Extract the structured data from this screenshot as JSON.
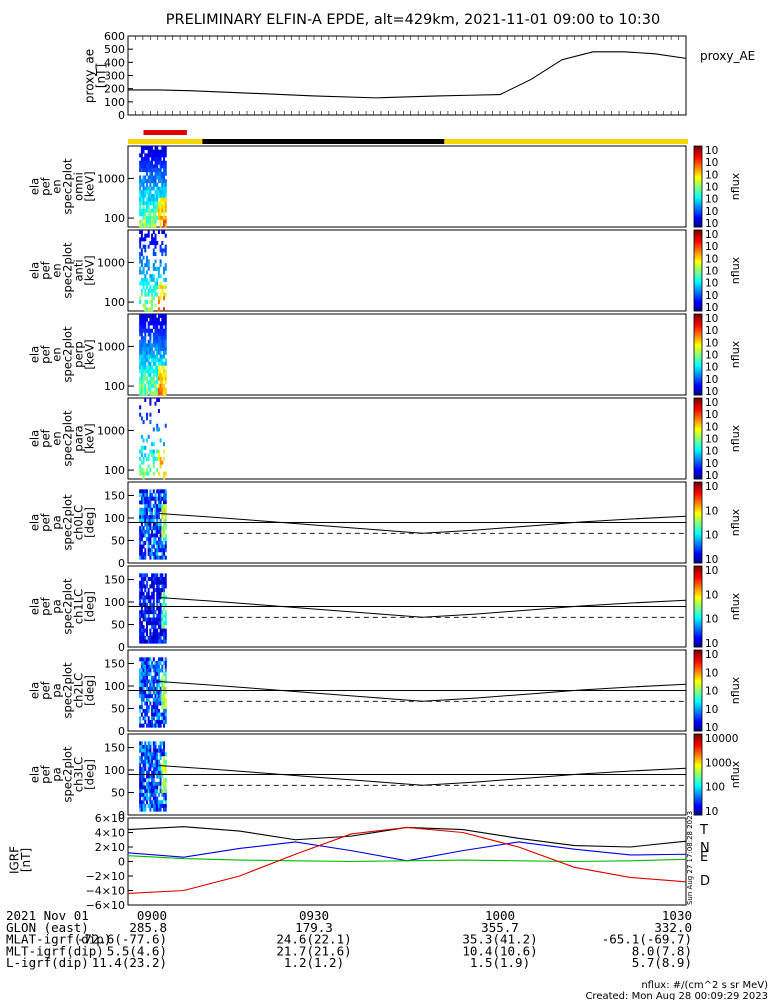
{
  "title": "PRELIMINARY ELFIN-A EPDE, alt=429km, 2021-11-01 09:00 to 10:30",
  "colors": {
    "bar_red": "#e00000",
    "bar_black": "#000000",
    "bar_yellow": "#f5d800",
    "igrf_T": "#000000",
    "igrf_N": "#0000dd",
    "igrf_E": "#00bb00",
    "igrf_D": "#dd0000"
  },
  "chart_data": [
    {
      "type": "line",
      "panel": "proxy_ae",
      "ylabel": [
        "proxy_ae",
        "[nT]"
      ],
      "legend": "proxy_AE",
      "ylim": [
        0,
        600
      ],
      "yticks": [
        "600",
        "500",
        "400",
        "300",
        "200",
        "100",
        "0"
      ],
      "x": [
        0,
        5,
        10,
        20,
        30,
        40,
        50,
        55,
        60,
        65,
        70,
        75,
        80,
        85,
        90
      ],
      "y": [
        190,
        190,
        185,
        165,
        145,
        130,
        145,
        150,
        155,
        270,
        420,
        480,
        480,
        465,
        430
      ],
      "x_unit": "minutes since 09:00"
    },
    {
      "type": "heatmap",
      "panel": "omni",
      "ylabel": [
        "ela",
        "pef",
        "en",
        "spec2plot",
        "omni",
        "[keV]"
      ],
      "y_scale": "log",
      "yticks": [
        "1000",
        "100"
      ],
      "colorbar": {
        "label": "nflux",
        "ticks": [
          "10<sup>7</sup>",
          "10<sup>6</sup>",
          "10<sup>5</sup>",
          "10<sup>4</sup>",
          "10<sup>3</sup>",
          "10<sup>2</sup>",
          "10<sup>1</sup>"
        ]
      }
    },
    {
      "type": "heatmap",
      "panel": "anti",
      "ylabel": [
        "ela",
        "pef",
        "en",
        "spec2plot",
        "anti",
        "[keV]"
      ],
      "y_scale": "log",
      "yticks": [
        "1000",
        "100"
      ],
      "colorbar": {
        "label": "nflux",
        "ticks": [
          "10<sup>7</sup>",
          "10<sup>6</sup>",
          "10<sup>5</sup>",
          "10<sup>4</sup>",
          "10<sup>3</sup>",
          "10<sup>2</sup>",
          "10<sup>1</sup>"
        ]
      }
    },
    {
      "type": "heatmap",
      "panel": "perp",
      "ylabel": [
        "ela",
        "pef",
        "en",
        "spec2plot",
        "perp",
        "[keV]"
      ],
      "y_scale": "log",
      "yticks": [
        "1000",
        "100"
      ],
      "colorbar": {
        "label": "nflux",
        "ticks": [
          "10<sup>7</sup>",
          "10<sup>6</sup>",
          "10<sup>5</sup>",
          "10<sup>4</sup>",
          "10<sup>3</sup>",
          "10<sup>2</sup>",
          "10<sup>1</sup>"
        ]
      }
    },
    {
      "type": "heatmap",
      "panel": "para",
      "ylabel": [
        "ela",
        "pef",
        "en",
        "spec2plot",
        "para",
        "[keV]"
      ],
      "y_scale": "log",
      "yticks": [
        "1000",
        "100"
      ],
      "colorbar": {
        "label": "nflux",
        "ticks": [
          "10<sup>7</sup>",
          "10<sup>6</sup>",
          "10<sup>5</sup>",
          "10<sup>4</sup>",
          "10<sup>3</sup>",
          "10<sup>2</sup>",
          "10<sup>1</sup>"
        ]
      }
    },
    {
      "type": "heatmap",
      "panel": "ch0LC",
      "ylabel": [
        "ela",
        "pef",
        "pa",
        "spec2plot",
        "ch0LC",
        "[deg]"
      ],
      "ylim": [
        0,
        180
      ],
      "yticks": [
        "150",
        "100",
        "50",
        "0"
      ],
      "colorbar": {
        "label": "nflux",
        "ticks": [
          "10<sup>7</sup>",
          "10<sup>6</sup>",
          "10<sup>5</sup>",
          "10<sup>4</sup>"
        ]
      },
      "lc_solid": [
        110,
        102,
        93,
        84,
        75,
        66,
        73,
        82,
        91,
        98,
        104
      ],
      "lc_dashed": 66,
      "lc_hline": 90
    },
    {
      "type": "heatmap",
      "panel": "ch1LC",
      "ylabel": [
        "ela",
        "pef",
        "pa",
        "spec2plot",
        "ch1LC",
        "[deg]"
      ],
      "ylim": [
        0,
        180
      ],
      "yticks": [
        "150",
        "100",
        "50",
        "0"
      ],
      "colorbar": {
        "label": "nflux",
        "ticks": [
          "10<sup>6</sup>",
          "10<sup>5</sup>",
          "10<sup>4</sup>",
          "10<sup>3</sup>"
        ]
      },
      "lc_solid": [
        110,
        102,
        93,
        84,
        75,
        66,
        73,
        82,
        91,
        98,
        104
      ],
      "lc_dashed": 66,
      "lc_hline": 90
    },
    {
      "type": "heatmap",
      "panel": "ch2LC",
      "ylabel": [
        "ela",
        "pef",
        "pa",
        "spec2plot",
        "ch2LC",
        "[deg]"
      ],
      "ylim": [
        0,
        180
      ],
      "yticks": [
        "150",
        "100",
        "50",
        "0"
      ],
      "colorbar": {
        "label": "nflux",
        "ticks": [
          "10<sup>6</sup>",
          "10<sup>5</sup>",
          "10<sup>4</sup>",
          "10<sup>3</sup>",
          "10<sup>2</sup>"
        ]
      },
      "lc_solid": [
        110,
        102,
        93,
        84,
        75,
        66,
        73,
        82,
        91,
        98,
        104
      ],
      "lc_dashed": 66,
      "lc_hline": 90
    },
    {
      "type": "heatmap",
      "panel": "ch3LC",
      "ylabel": [
        "ela",
        "pef",
        "pa",
        "spec2plot",
        "ch3LC",
        "[deg]"
      ],
      "ylim": [
        0,
        180
      ],
      "yticks": [
        "150",
        "100",
        "50",
        "0"
      ],
      "colorbar": {
        "label": "nflux",
        "ticks": [
          "10000",
          "1000",
          "100",
          "10"
        ]
      },
      "lc_solid": [
        110,
        102,
        93,
        84,
        75,
        66,
        73,
        82,
        91,
        98,
        104
      ],
      "lc_dashed": 66,
      "lc_hline": 90
    },
    {
      "type": "line",
      "panel": "igrf",
      "ylabel": [
        "IGRF",
        "[nT]"
      ],
      "ylim": [
        -60000,
        60000
      ],
      "yticks": [
        "6×10<sup>4</sup>",
        "4×10<sup>4</sup>",
        "2×10<sup>4</sup>",
        "0",
        "−2×10<sup>4</sup>",
        "−4×10<sup>4</sup>",
        "−6×10<sup>4</sup>"
      ],
      "series": [
        {
          "name": "T",
          "values": [
            44000,
            48000,
            42000,
            30000,
            35000,
            47000,
            44000,
            32000,
            22000,
            20000,
            28000
          ]
        },
        {
          "name": "N",
          "values": [
            12000,
            6000,
            18000,
            27000,
            15000,
            1000,
            15000,
            27000,
            17000,
            9000,
            10000
          ]
        },
        {
          "name": "E",
          "values": [
            8000,
            4000,
            2000,
            1000,
            0,
            1000,
            2000,
            1000,
            0,
            1000,
            3000
          ]
        },
        {
          "name": "D",
          "values": [
            -44000,
            -40000,
            -20000,
            10000,
            38000,
            47000,
            40000,
            20000,
            -8000,
            -22000,
            -28000
          ]
        }
      ]
    }
  ],
  "x_axis": {
    "ticks": [
      "0900",
      "0930",
      "1000",
      "1030"
    ]
  },
  "ephemeris": [
    {
      "label": "2021 Nov 01",
      "values": [
        "0900",
        "0930",
        "1000",
        "1030"
      ]
    },
    {
      "label": "GLON (east)",
      "values": [
        "285.8",
        "179.3",
        "355.7",
        "332.0"
      ]
    },
    {
      "label": "MLAT-igrf(dip)",
      "values": [
        "-72.6(-77.6)",
        "24.6(22.1)",
        "35.3(41.2)",
        "-65.1(-69.7)"
      ]
    },
    {
      "label": "MLT-igrf(dip)",
      "values": [
        "5.5(4.6)",
        "21.7(21.6)",
        "10.4(10.6)",
        "8.0(7.8)"
      ]
    },
    {
      "label": "L-igrf(dip)",
      "values": [
        "11.4(23.2)",
        "1.2(1.2)",
        "1.5(1.9)",
        "5.7(8.9)"
      ]
    }
  ],
  "footer": {
    "units": "nflux: #/(cm^2 s sr MeV)",
    "created": "Created: Mon Aug 28 00:09:29 2023",
    "stamp": "Sun Aug 27 17:08:28 2023"
  }
}
